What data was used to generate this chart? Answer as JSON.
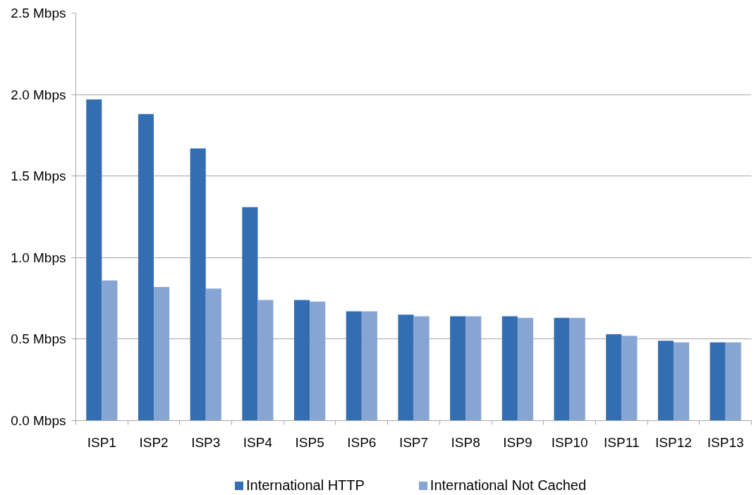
{
  "chart_data": {
    "type": "bar",
    "categories": [
      "ISP1",
      "ISP2",
      "ISP3",
      "ISP4",
      "ISP5",
      "ISP6",
      "ISP7",
      "ISP8",
      "ISP9",
      "ISP10",
      "ISP11",
      "ISP12",
      "ISP13"
    ],
    "series": [
      {
        "name": "International HTTP",
        "color": "#336db2",
        "values": [
          1.97,
          1.88,
          1.67,
          1.31,
          0.74,
          0.67,
          0.65,
          0.64,
          0.64,
          0.63,
          0.53,
          0.49,
          0.48
        ]
      },
      {
        "name": "International Not Cached",
        "color": "#87a5d3",
        "values": [
          0.86,
          0.82,
          0.81,
          0.74,
          0.73,
          0.67,
          0.64,
          0.64,
          0.63,
          0.63,
          0.52,
          0.48,
          0.48
        ]
      }
    ],
    "ylim": [
      0,
      2.5
    ],
    "yticks": [
      {
        "value": 0,
        "label": "0.0 Mbps"
      },
      {
        "value": 0.5,
        "label": "0.5 Mbps"
      },
      {
        "value": 1.0,
        "label": "1.0 Mbps"
      },
      {
        "value": 1.5,
        "label": "1.5 Mbps"
      },
      {
        "value": 2.0,
        "label": "2.0 Mbps"
      },
      {
        "value": 2.5,
        "label": "2.5 Mbps"
      }
    ],
    "grid": "y",
    "legend": "bottom"
  }
}
